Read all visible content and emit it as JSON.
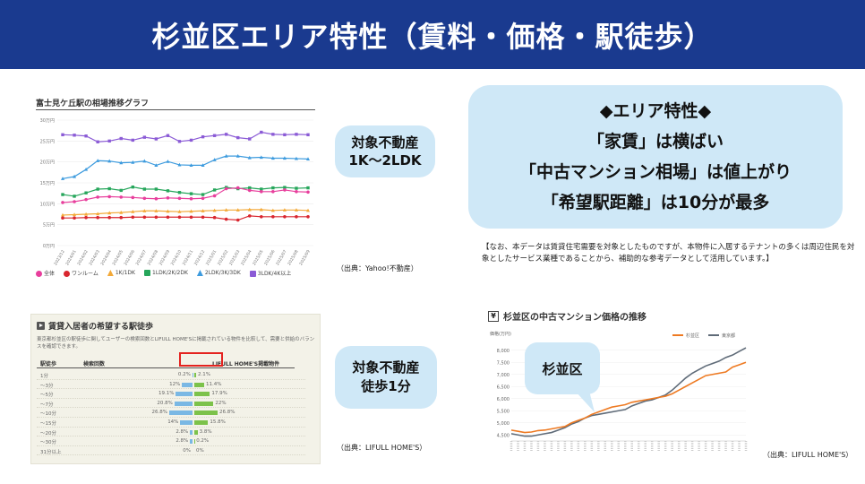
{
  "header": {
    "title": "杉並区エリア特性（賃料・価格・駅徒歩）"
  },
  "rent_chart": {
    "title": "富士見ケ丘駅の相場推移グラフ",
    "yticks": [
      "30万円",
      "25万円",
      "20万円",
      "15万円",
      "10万円",
      "5万円",
      "0万円"
    ],
    "xticks": [
      "2023/12",
      "2024/01",
      "2024/02",
      "2024/03",
      "2024/04",
      "2024/05",
      "2024/06",
      "2024/07",
      "2024/08",
      "2024/09",
      "2024/10",
      "2024/11",
      "2024/12",
      "2025/01",
      "2025/02",
      "2025/03",
      "2025/04",
      "2025/05",
      "2025/06",
      "2025/07",
      "2025/08",
      "2025/09"
    ],
    "legend": [
      "全体",
      "ワンルーム",
      "1K/1DK",
      "1LDK/2K/2DK",
      "2LDK/3K/3DK",
      "3LDK/4K以上"
    ],
    "colors": [
      "#e83e9c",
      "#d9262f",
      "#f3a938",
      "#26a65b",
      "#3d9bde",
      "#8b5bd6"
    ],
    "source": "（出典：Yahoo!不動産）"
  },
  "bubble1": {
    "line1": "対象不動産",
    "line2": "1K〜2LDK"
  },
  "area_features": {
    "heading": "◆エリア特性◆",
    "line1": "「家賃」は横ばい",
    "line2": "「中古マンション相場」は値上がり",
    "line3": "「希望駅距離」は10分が最多"
  },
  "note": "【なお、本データは賃貸住宅需要を対象としたものですが、本物件に入居するテナントの多くは周辺住民を対象としたサービス業種であることから、補助的な参考データとして活用しています。】",
  "walk_panel": {
    "title": "賃貸入居者の希望する駅徒歩",
    "desc": "東京都杉並区の駅徒歩に関してユーザーの検索回数とLIFULL HOME'Sに掲載されている物件を比較して、需要と供給のバランスを確認できます。",
    "col1": "駅徒歩",
    "col2": "検索回数",
    "col3": "LIFULL HOME'S掲載物件",
    "rows": [
      {
        "label": "1分",
        "demand": "0.2%",
        "supply": "2.1%"
      },
      {
        "label": "〜3分",
        "demand": "12%",
        "supply": "11.4%"
      },
      {
        "label": "〜5分",
        "demand": "19.1%",
        "supply": "17.9%"
      },
      {
        "label": "〜7分",
        "demand": "20.8%",
        "supply": "22%"
      },
      {
        "label": "〜10分",
        "demand": "26.8%",
        "supply": "26.8%"
      },
      {
        "label": "〜15分",
        "demand": "14%",
        "supply": "15.8%"
      },
      {
        "label": "〜20分",
        "demand": "2.8%",
        "supply": "3.8%"
      },
      {
        "label": "〜30分",
        "demand": "2.8%",
        "supply": "0.2%"
      },
      {
        "label": "31分以上",
        "demand": "0%",
        "supply": "0%"
      }
    ],
    "source": "（出典：LIFULL HOME'S）"
  },
  "bubble2": {
    "line1": "対象不動産",
    "line2": "徒歩1分"
  },
  "price_chart": {
    "title": "杉並区の中古マンション価格の推移",
    "unit": "価格(万円)",
    "legend": [
      "杉並区",
      "東京都"
    ],
    "colors": [
      "#ee7a22",
      "#5f6b78"
    ],
    "yticks": [
      "8,000",
      "7,500",
      "7,000",
      "6,500",
      "6,000",
      "5,500",
      "5,000",
      "4,500"
    ],
    "callout": "杉並区",
    "source": "（出典：LIFULL HOME'S）"
  },
  "chart_data": [
    {
      "type": "line",
      "title": "富士見ケ丘駅の相場推移グラフ",
      "ylabel": "万円",
      "ylim": [
        0,
        30
      ],
      "x": [
        "2023/12",
        "2024/01",
        "2024/02",
        "2024/03",
        "2024/04",
        "2024/05",
        "2024/06",
        "2024/07",
        "2024/08",
        "2024/09",
        "2024/10",
        "2024/11",
        "2024/12",
        "2025/01",
        "2025/02",
        "2025/03",
        "2025/04",
        "2025/05",
        "2025/06",
        "2025/07",
        "2025/08",
        "2025/09"
      ],
      "series": [
        {
          "name": "3LDK/4K以上",
          "values": [
            26.5,
            26.4,
            26.2,
            24.8,
            25.0,
            25.6,
            25.2,
            25.9,
            25.5,
            26.3,
            24.9,
            25.2,
            26.0,
            26.3,
            26.6,
            25.8,
            25.5,
            27.1,
            26.6,
            26.5,
            26.6,
            26.5
          ]
        },
        {
          "name": "2LDK/3K/3DK",
          "values": [
            16.0,
            16.5,
            18.2,
            20.3,
            20.2,
            19.8,
            19.9,
            20.2,
            19.2,
            20.1,
            19.3,
            19.2,
            19.2,
            20.5,
            21.4,
            21.4,
            21.0,
            21.1,
            20.9,
            20.9,
            20.8,
            20.7
          ]
        },
        {
          "name": "1LDK/2K/2DK",
          "values": [
            12.2,
            11.8,
            12.6,
            13.5,
            13.6,
            13.2,
            14.0,
            13.5,
            13.5,
            13.1,
            12.7,
            12.4,
            12.2,
            13.3,
            13.9,
            13.6,
            13.8,
            13.5,
            13.8,
            13.9,
            13.7,
            13.8
          ]
        },
        {
          "name": "全体",
          "values": [
            10.3,
            10.5,
            11.0,
            11.6,
            11.7,
            11.6,
            11.5,
            11.3,
            11.2,
            11.4,
            11.3,
            11.2,
            11.3,
            11.9,
            13.6,
            13.8,
            13.2,
            12.9,
            12.9,
            13.3,
            12.9,
            12.8
          ]
        },
        {
          "name": "1K/1DK",
          "values": [
            7.3,
            7.4,
            7.5,
            7.6,
            7.8,
            7.9,
            8.1,
            8.3,
            8.3,
            8.2,
            8.1,
            8.2,
            8.3,
            8.4,
            8.5,
            8.5,
            8.6,
            8.6,
            8.4,
            8.5,
            8.5,
            8.4
          ]
        },
        {
          "name": "ワンルーム",
          "values": [
            6.6,
            6.6,
            6.7,
            6.7,
            6.7,
            6.7,
            6.8,
            6.8,
            6.8,
            6.8,
            6.8,
            6.8,
            6.8,
            6.7,
            6.3,
            6.1,
            7.1,
            6.9,
            6.9,
            6.9,
            6.9,
            6.9
          ]
        }
      ]
    },
    {
      "type": "bar",
      "title": "賃貸入居者の希望する駅徒歩",
      "categories": [
        "1分",
        "〜3分",
        "〜5分",
        "〜7分",
        "〜10分",
        "〜15分",
        "〜20分",
        "〜30分",
        "31分以上"
      ],
      "series": [
        {
          "name": "検索回数",
          "values": [
            0.2,
            12,
            19.1,
            20.8,
            26.8,
            14,
            2.8,
            2.8,
            0
          ]
        },
        {
          "name": "LIFULL HOME'S掲載物件",
          "values": [
            2.1,
            11.4,
            17.9,
            22,
            26.8,
            15.8,
            3.8,
            0.2,
            0
          ]
        }
      ]
    },
    {
      "type": "line",
      "title": "杉並区の中古マンション価格の推移",
      "ylabel": "価格(万円)",
      "ylim": [
        4250,
        8250
      ],
      "series": [
        {
          "name": "杉並区",
          "values": [
            4700,
            4650,
            4600,
            4620,
            4680,
            4700,
            4750,
            4800,
            4850,
            5000,
            5100,
            5200,
            5350,
            5450,
            5550,
            5650,
            5700,
            5750,
            5850,
            5900,
            5950,
            6000,
            6050,
            6100,
            6200,
            6350,
            6500,
            6650,
            6800,
            6950,
            7000,
            7050,
            7100,
            7300,
            7400,
            7500
          ]
        },
        {
          "name": "東京都",
          "values": [
            4550,
            4500,
            4450,
            4450,
            4500,
            4550,
            4600,
            4700,
            4800,
            4950,
            5050,
            5200,
            5300,
            5350,
            5400,
            5450,
            5500,
            5550,
            5700,
            5800,
            5900,
            5950,
            6050,
            6150,
            6350,
            6600,
            6850,
            7050,
            7200,
            7350,
            7450,
            7550,
            7700,
            7800,
            7950,
            8100
          ]
        }
      ]
    }
  ]
}
